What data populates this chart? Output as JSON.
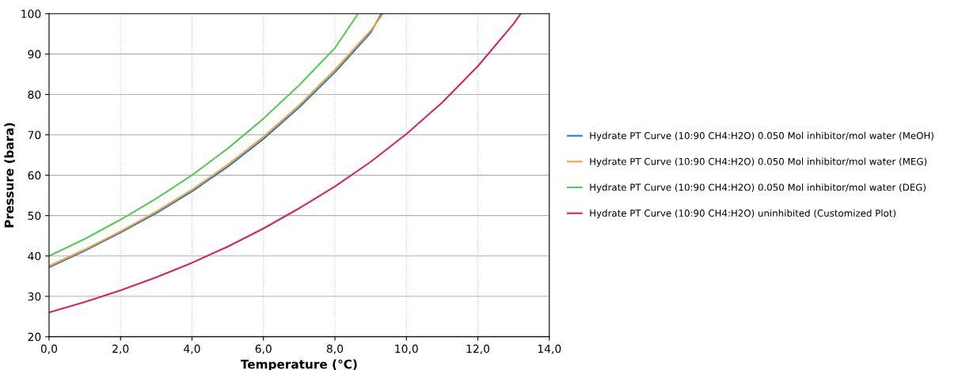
{
  "chart_data": {
    "type": "line",
    "xlabel": "Temperature (°C)",
    "ylabel": "Pressure (bara)",
    "xlim": [
      0,
      14
    ],
    "ylim": [
      20,
      100
    ],
    "xticks": [
      {
        "value": 0,
        "label": "0,0"
      },
      {
        "value": 2,
        "label": "2,0"
      },
      {
        "value": 4,
        "label": "4,0"
      },
      {
        "value": 6,
        "label": "6,0"
      },
      {
        "value": 8,
        "label": "8,0"
      },
      {
        "value": 10,
        "label": "10,0"
      },
      {
        "value": 12,
        "label": "12,0"
      },
      {
        "value": 14,
        "label": "14,0"
      }
    ],
    "yticks": [
      20,
      30,
      40,
      50,
      60,
      70,
      80,
      90,
      100
    ],
    "grid": true,
    "legend": "right",
    "marker": "none",
    "line_style": "solid",
    "series": [
      {
        "name": "Hydrate PT Curve (10:90 CH4:H2O) 0.050 Mol inhibitor/mol water (MeOH)",
        "color": "#2b7bba",
        "x": [
          0,
          1,
          2,
          3,
          4,
          5,
          6,
          7,
          8,
          9,
          9.3
        ],
        "values": [
          37.2,
          41.3,
          45.8,
          50.6,
          56,
          62.1,
          69,
          76.8,
          85.5,
          95.3,
          100
        ]
      },
      {
        "name": "Hydrate PT Curve (10:90 CH4:H2O) 0.050 Mol inhibitor/mol water (MEG)",
        "color": "#f5a142",
        "x": [
          0,
          1,
          2,
          3,
          4,
          5,
          6,
          7,
          8,
          9,
          9.35
        ],
        "values": [
          37.5,
          41.6,
          46.1,
          51,
          56.4,
          62.6,
          69.5,
          77.3,
          86.1,
          95.8,
          100
        ]
      },
      {
        "name": "Hydrate PT Curve (10:90 CH4:H2O) 0.050 Mol inhibitor/mol water (DEG)",
        "color": "#5ac85a",
        "x": [
          0,
          1,
          2,
          3,
          4,
          5,
          6,
          7,
          8,
          8.65
        ],
        "values": [
          40,
          44.2,
          49,
          54.2,
          60,
          66.6,
          74,
          82.3,
          91.5,
          100
        ]
      },
      {
        "name": "Hydrate PT Curve (10:90 CH4:H2O) uninhibited (Customized Plot)",
        "color": "#d6245c",
        "x": [
          0,
          1,
          2,
          3,
          4,
          5,
          6,
          7,
          8,
          9,
          10,
          11,
          12,
          13,
          13.2
        ],
        "values": [
          26,
          28.6,
          31.5,
          34.7,
          38.3,
          42.3,
          46.8,
          51.8,
          57.2,
          63.3,
          70.2,
          78,
          87,
          97.5,
          100
        ]
      }
    ]
  }
}
